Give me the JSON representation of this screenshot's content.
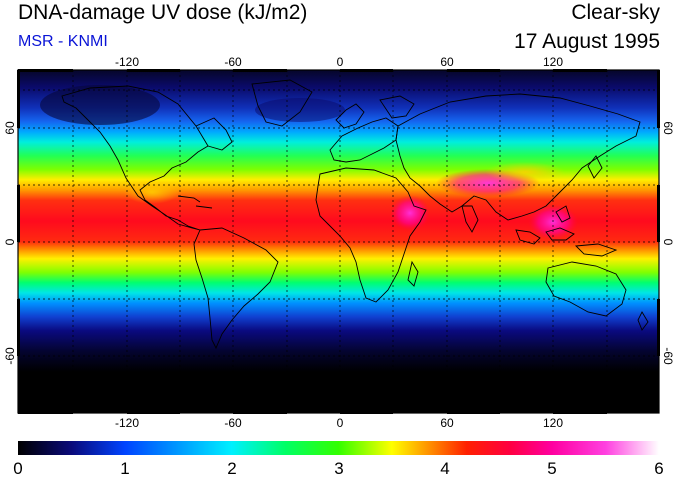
{
  "header": {
    "title": "DNA-damage UV dose (kJ/m2)",
    "source": "MSR - KNMI",
    "condition": "Clear-sky",
    "date": "17 August 1995"
  },
  "map": {
    "lon_ticks": [
      -120,
      -60,
      0,
      60,
      120
    ],
    "lat_ticks": [
      60,
      0,
      -60
    ],
    "lon_range": [
      -180,
      180
    ],
    "lat_range": [
      -90,
      90
    ],
    "grid": "dashed",
    "colors": {
      "coastline": "#000000",
      "grid": "#000000"
    }
  },
  "colorbar": {
    "ticks": [
      0,
      1,
      2,
      3,
      4,
      5,
      6
    ],
    "range": [
      0,
      6
    ],
    "stops": [
      {
        "value": 0.0,
        "color": "#000000"
      },
      {
        "value": 0.5,
        "color": "#0a0a7a"
      },
      {
        "value": 1.0,
        "color": "#0044ff"
      },
      {
        "value": 1.5,
        "color": "#0099ff"
      },
      {
        "value": 2.0,
        "color": "#00f0ff"
      },
      {
        "value": 2.5,
        "color": "#00ff66"
      },
      {
        "value": 3.0,
        "color": "#33ff00"
      },
      {
        "value": 3.5,
        "color": "#ffff00"
      },
      {
        "value": 3.8,
        "color": "#ffa000"
      },
      {
        "value": 4.2,
        "color": "#ff2000"
      },
      {
        "value": 4.6,
        "color": "#ff0040"
      },
      {
        "value": 5.0,
        "color": "#ff00a0"
      },
      {
        "value": 5.5,
        "color": "#ff40e0"
      },
      {
        "value": 6.0,
        "color": "#ffffff"
      }
    ]
  }
}
